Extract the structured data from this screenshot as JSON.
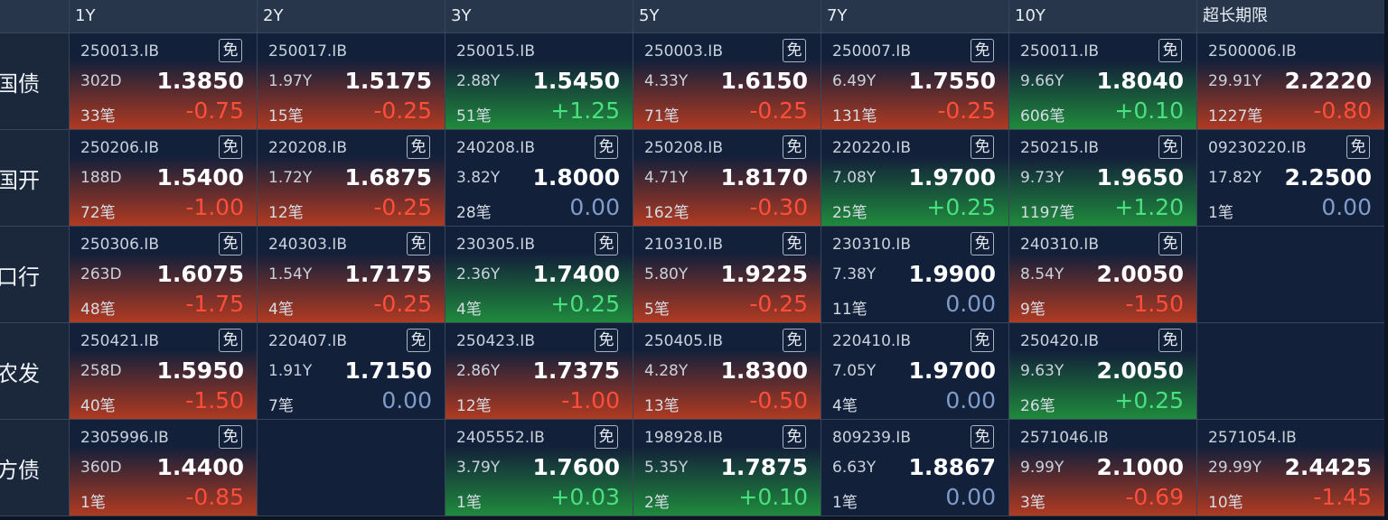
{
  "columns": [
    "1Y",
    "2Y",
    "3Y",
    "5Y",
    "7Y",
    "10Y",
    "超长期限"
  ],
  "rows": [
    {
      "label": "国债",
      "cells": [
        {
          "code": "250013.IB",
          "badge": "免",
          "term": "302D",
          "yield": "1.3850",
          "count": "33笔",
          "change": "-0.75"
        },
        {
          "code": "250017.IB",
          "term": "1.97Y",
          "yield": "1.5175",
          "count": "15笔",
          "change": "-0.25"
        },
        {
          "code": "250015.IB",
          "term": "2.88Y",
          "yield": "1.5450",
          "count": "51笔",
          "change": "+1.25"
        },
        {
          "code": "250003.IB",
          "badge": "免",
          "term": "4.33Y",
          "yield": "1.6150",
          "count": "71笔",
          "change": "-0.25"
        },
        {
          "code": "250007.IB",
          "badge": "免",
          "term": "6.49Y",
          "yield": "1.7550",
          "count": "131笔",
          "change": "-0.25"
        },
        {
          "code": "250011.IB",
          "badge": "免",
          "term": "9.66Y",
          "yield": "1.8040",
          "count": "606笔",
          "change": "+0.10"
        },
        {
          "code": "2500006.IB",
          "term": "29.91Y",
          "yield": "2.2220",
          "count": "1227笔",
          "change": "-0.80"
        }
      ]
    },
    {
      "label": "国开",
      "cells": [
        {
          "code": "250206.IB",
          "badge": "免",
          "term": "188D",
          "yield": "1.5400",
          "count": "72笔",
          "change": "-1.00"
        },
        {
          "code": "220208.IB",
          "badge": "免",
          "term": "1.72Y",
          "yield": "1.6875",
          "count": "12笔",
          "change": "-0.25"
        },
        {
          "code": "240208.IB",
          "badge": "免",
          "term": "3.82Y",
          "yield": "1.8000",
          "count": "28笔",
          "change": "0.00"
        },
        {
          "code": "250208.IB",
          "badge": "免",
          "term": "4.71Y",
          "yield": "1.8170",
          "count": "162笔",
          "change": "-0.30"
        },
        {
          "code": "220220.IB",
          "badge": "免",
          "term": "7.08Y",
          "yield": "1.9700",
          "count": "25笔",
          "change": "+0.25"
        },
        {
          "code": "250215.IB",
          "badge": "免",
          "term": "9.73Y",
          "yield": "1.9650",
          "count": "1197笔",
          "change": "+1.20"
        },
        {
          "code": "09230220.IB",
          "badge": "免",
          "term": "17.82Y",
          "yield": "2.2500",
          "count": "1笔",
          "change": "0.00"
        }
      ]
    },
    {
      "label": "进出口行",
      "cells": [
        {
          "code": "250306.IB",
          "badge": "免",
          "term": "263D",
          "yield": "1.6075",
          "count": "48笔",
          "change": "-1.75"
        },
        {
          "code": "240303.IB",
          "badge": "免",
          "term": "1.54Y",
          "yield": "1.7175",
          "count": "4笔",
          "change": "-0.25"
        },
        {
          "code": "230305.IB",
          "badge": "免",
          "term": "2.36Y",
          "yield": "1.7400",
          "count": "4笔",
          "change": "+0.25"
        },
        {
          "code": "210310.IB",
          "badge": "免",
          "term": "5.80Y",
          "yield": "1.9225",
          "count": "5笔",
          "change": "-0.25"
        },
        {
          "code": "230310.IB",
          "badge": "免",
          "term": "7.38Y",
          "yield": "1.9900",
          "count": "11笔",
          "change": "0.00"
        },
        {
          "code": "240310.IB",
          "badge": "免",
          "term": "8.54Y",
          "yield": "2.0050",
          "count": "9笔",
          "change": "-1.50"
        },
        null
      ]
    },
    {
      "label": "农发",
      "cells": [
        {
          "code": "250421.IB",
          "badge": "免",
          "term": "258D",
          "yield": "1.5950",
          "count": "40笔",
          "change": "-1.50"
        },
        {
          "code": "220407.IB",
          "badge": "免",
          "term": "1.91Y",
          "yield": "1.7150",
          "count": "7笔",
          "change": "0.00"
        },
        {
          "code": "250423.IB",
          "badge": "免",
          "term": "2.86Y",
          "yield": "1.7375",
          "count": "12笔",
          "change": "-1.00"
        },
        {
          "code": "250405.IB",
          "badge": "免",
          "term": "4.28Y",
          "yield": "1.8300",
          "count": "13笔",
          "change": "-0.50"
        },
        {
          "code": "220410.IB",
          "badge": "免",
          "term": "7.05Y",
          "yield": "1.9700",
          "count": "4笔",
          "change": "0.00"
        },
        {
          "code": "250420.IB",
          "badge": "免",
          "term": "9.63Y",
          "yield": "2.0050",
          "count": "26笔",
          "change": "+0.25"
        },
        null
      ]
    },
    {
      "label": "地方债",
      "cells": [
        {
          "code": "2305996.IB",
          "badge": "免",
          "term": "360D",
          "yield": "1.4400",
          "count": "1笔",
          "change": "-0.85"
        },
        null,
        {
          "code": "2405552.IB",
          "badge": "免",
          "term": "3.79Y",
          "yield": "1.7600",
          "count": "1笔",
          "change": "+0.03"
        },
        {
          "code": "198928.IB",
          "badge": "免",
          "term": "5.35Y",
          "yield": "1.7875",
          "count": "2笔",
          "change": "+0.10"
        },
        {
          "code": "809239.IB",
          "badge": "免",
          "term": "6.63Y",
          "yield": "1.8867",
          "count": "1笔",
          "change": "0.00"
        },
        {
          "code": "2571046.IB",
          "term": "9.99Y",
          "yield": "2.1000",
          "count": "3笔",
          "change": "-0.69"
        },
        {
          "code": "2571054.IB",
          "term": "29.99Y",
          "yield": "2.4425",
          "count": "10笔",
          "change": "-1.45"
        }
      ]
    }
  ]
}
